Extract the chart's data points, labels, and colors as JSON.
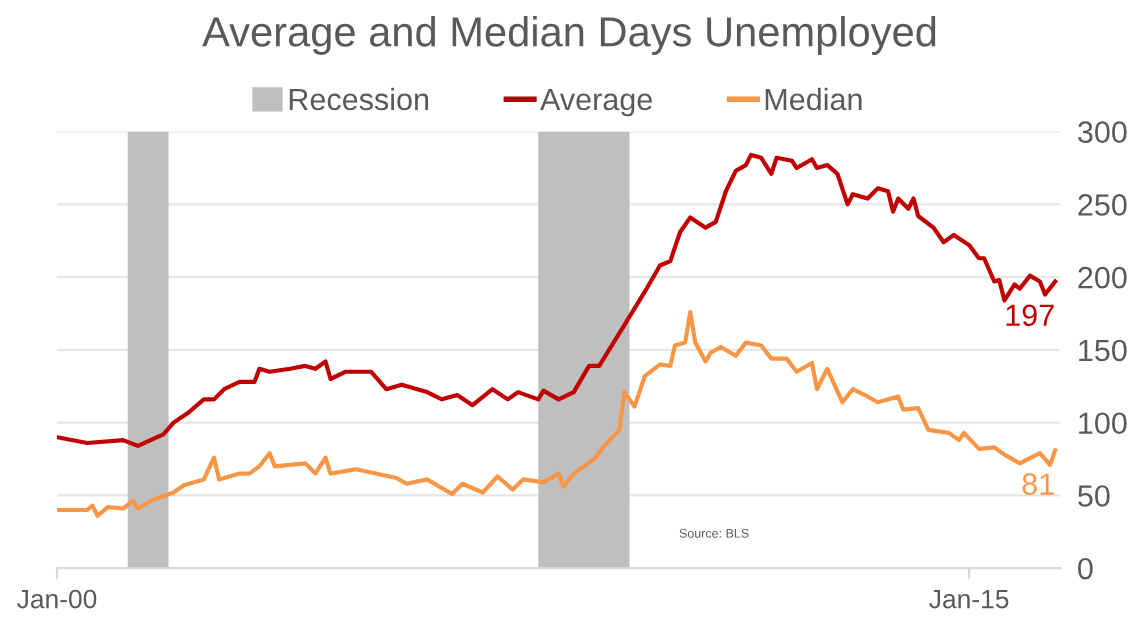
{
  "chart_data": {
    "type": "line",
    "title": "Average and Median Days Unemployed",
    "series": [
      {
        "name": "Average",
        "color": "#c00000",
        "x": [
          "2000-01",
          "2000-07",
          "2001-02",
          "2001-05",
          "2001-10",
          "2001-12",
          "2002-03",
          "2002-06",
          "2002-08",
          "2002-10",
          "2003-01",
          "2003-04",
          "2003-05",
          "2003-07",
          "2003-11",
          "2004-02",
          "2004-04",
          "2004-06",
          "2004-07",
          "2004-10",
          "2005-03",
          "2005-06",
          "2005-09",
          "2006-02",
          "2006-05",
          "2006-08",
          "2006-11",
          "2007-03",
          "2007-06",
          "2007-08",
          "2007-12",
          "2008-01",
          "2008-04",
          "2008-07",
          "2008-10",
          "2008-12",
          "2009-05",
          "2009-09",
          "2009-12",
          "2010-02",
          "2010-04",
          "2010-06",
          "2010-09",
          "2010-11",
          "2011-01",
          "2011-03",
          "2011-05",
          "2011-06",
          "2011-08",
          "2011-10",
          "2011-11",
          "2012-02",
          "2012-03",
          "2012-06",
          "2012-07",
          "2012-09",
          "2012-11",
          "2013-01",
          "2013-02",
          "2013-05",
          "2013-07",
          "2013-09",
          "2013-10",
          "2013-11",
          "2014-01",
          "2014-02",
          "2014-03",
          "2014-06",
          "2014-08",
          "2014-10",
          "2015-01",
          "2015-03",
          "2015-04",
          "2015-06",
          "2015-07",
          "2015-08",
          "2015-10",
          "2015-11",
          "2016-01",
          "2016-03",
          "2016-04",
          "2016-06"
        ],
        "values": [
          90,
          86,
          88,
          84,
          92,
          100,
          107,
          116,
          116,
          123,
          128,
          128,
          137,
          135,
          137,
          139,
          137,
          142,
          130,
          135,
          135,
          123,
          126,
          121,
          116,
          119,
          112,
          123,
          116,
          121,
          116,
          122,
          116,
          121,
          139,
          139,
          167,
          190,
          208,
          211,
          231,
          241,
          234,
          238,
          259,
          273,
          277,
          284,
          282,
          271,
          282,
          280,
          275,
          281,
          275,
          277,
          271,
          250,
          257,
          254,
          261,
          259,
          245,
          254,
          247,
          254,
          242,
          234,
          224,
          229,
          222,
          213,
          213,
          197,
          198,
          184,
          195,
          192,
          201,
          197,
          188,
          197
        ]
      },
      {
        "name": "Median",
        "color": "#f79646",
        "x": [
          "2000-01",
          "2000-07",
          "2000-08",
          "2000-09",
          "2000-11",
          "2001-02",
          "2001-04",
          "2001-05",
          "2001-08",
          "2001-12",
          "2002-02",
          "2002-06",
          "2002-08",
          "2002-09",
          "2003-01",
          "2003-03",
          "2003-05",
          "2003-07",
          "2003-08",
          "2004-02",
          "2004-04",
          "2004-06",
          "2004-07",
          "2004-12",
          "2005-08",
          "2005-10",
          "2006-02",
          "2006-07",
          "2006-09",
          "2007-01",
          "2007-04",
          "2007-07",
          "2007-09",
          "2008-01",
          "2008-04",
          "2008-05",
          "2008-07",
          "2008-09",
          "2008-11",
          "2009-01",
          "2009-04",
          "2009-05",
          "2009-07",
          "2009-09",
          "2009-12",
          "2010-02",
          "2010-03",
          "2010-05",
          "2010-06",
          "2010-07",
          "2010-09",
          "2010-10",
          "2010-12",
          "2011-03",
          "2011-05",
          "2011-08",
          "2011-10",
          "2012-01",
          "2012-03",
          "2012-06",
          "2012-07",
          "2012-09",
          "2012-12",
          "2013-02",
          "2013-05",
          "2013-07",
          "2013-11",
          "2013-12",
          "2014-03",
          "2014-05",
          "2014-09",
          "2014-11",
          "2014-12",
          "2015-03",
          "2015-06",
          "2015-08",
          "2015-11",
          "2016-03",
          "2016-05",
          "2016-06"
        ],
        "values": [
          40,
          40,
          43,
          36,
          42,
          41,
          46,
          41,
          47,
          52,
          57,
          61,
          76,
          61,
          65,
          65,
          70,
          79,
          70,
          72,
          65,
          76,
          65,
          68,
          62,
          58,
          61,
          51,
          58,
          52,
          63,
          54,
          61,
          59,
          65,
          56,
          65,
          70,
          75,
          84,
          95,
          121,
          111,
          132,
          140,
          139,
          153,
          155,
          176,
          155,
          142,
          148,
          152,
          146,
          155,
          153,
          144,
          144,
          135,
          141,
          123,
          137,
          114,
          123,
          118,
          114,
          118,
          109,
          110,
          95,
          93,
          88,
          93,
          82,
          83,
          78,
          72,
          79,
          71,
          81
        ]
      }
    ],
    "bands": [
      {
        "axis": "x",
        "from": "2001-03",
        "to": "2001-11",
        "label": "Recession",
        "color": "#bfbfbf"
      },
      {
        "axis": "x",
        "from": "2007-12",
        "to": "2009-06",
        "color": "#bfbfbf"
      }
    ],
    "annotations": [
      {
        "text": "197",
        "x": "2016-06",
        "y": 197
      },
      {
        "text": "81",
        "x": "2016-06",
        "y": 81
      },
      "Source: BLS"
    ],
    "xlim": [
      "2000-01",
      "2016-07"
    ],
    "xticks": [
      {
        "value": "2000-01",
        "label": "Jan-00"
      },
      {
        "value": "2015-01",
        "label": "Jan-15"
      }
    ],
    "ylim": [
      0,
      300
    ],
    "yticks": [
      0,
      50,
      100,
      150,
      200,
      250,
      300
    ],
    "grid": "y",
    "legend": "top",
    "marker": "none",
    "line_style": "solid"
  }
}
